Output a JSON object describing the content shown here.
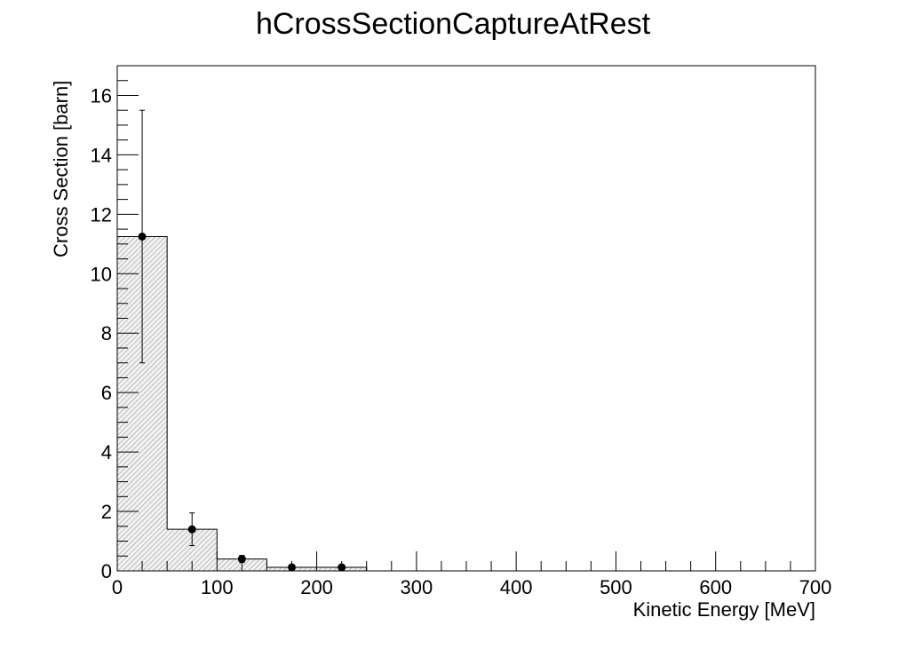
{
  "chart_data": {
    "type": "bar",
    "title": "hCrossSectionCaptureAtRest",
    "xlabel": "Kinetic Energy [MeV]",
    "ylabel": "Cross Section [barn]",
    "xlim": [
      0,
      700
    ],
    "ylim": [
      0,
      17
    ],
    "x_ticks": [
      "0",
      "100",
      "200",
      "300",
      "400",
      "500",
      "600",
      "700"
    ],
    "y_ticks": [
      "0",
      "2",
      "4",
      "6",
      "8",
      "10",
      "12",
      "14",
      "16"
    ],
    "bins": [
      {
        "low": 0,
        "high": 50,
        "value": 11.25,
        "err": 4.25
      },
      {
        "low": 50,
        "high": 100,
        "value": 1.4,
        "err": 0.55
      },
      {
        "low": 100,
        "high": 150,
        "value": 0.4,
        "err": 0.12
      },
      {
        "low": 150,
        "high": 200,
        "value": 0.12,
        "err": 0.05
      },
      {
        "low": 200,
        "high": 250,
        "value": 0.12,
        "err": 0.05
      }
    ],
    "fill_color": "#e8e8e8",
    "line_color": "#000000",
    "grid": false,
    "legend": false
  }
}
